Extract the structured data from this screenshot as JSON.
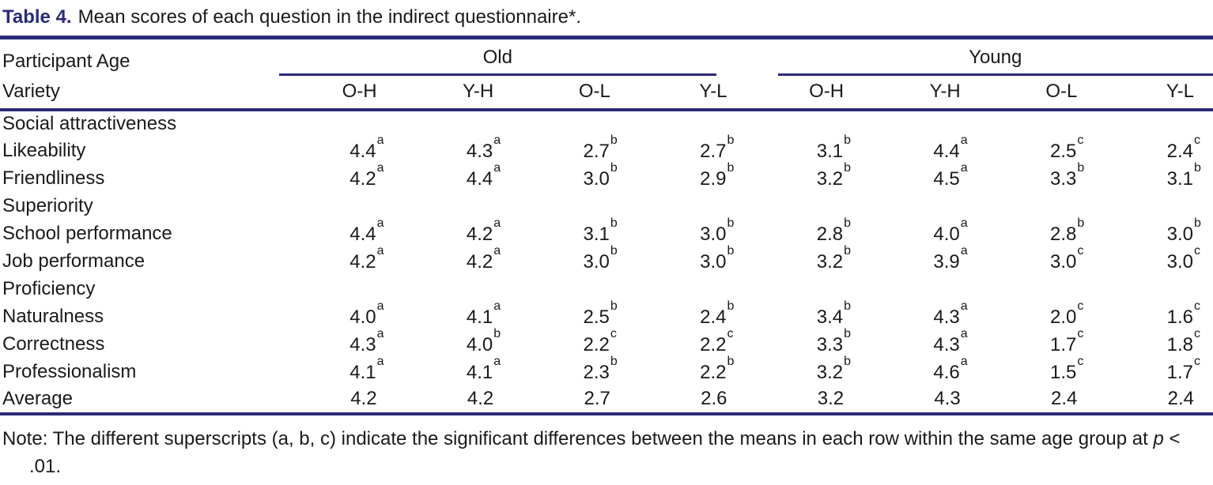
{
  "colors": {
    "accent_navy": "#2b2a78",
    "text": "#1a1a1a",
    "background": "#ffffff"
  },
  "title": {
    "label": "Table 4.",
    "text": "Mean scores of each question in the indirect questionnaire*."
  },
  "table": {
    "stub_header": {
      "line1": "Participant Age",
      "line2": "Variety"
    },
    "groups": [
      {
        "label": "Old",
        "columns": [
          "O-H",
          "Y-H",
          "O-L",
          "Y-L"
        ]
      },
      {
        "label": "Young",
        "columns": [
          "O-H",
          "Y-H",
          "O-L",
          "Y-L"
        ]
      }
    ],
    "rows": [
      {
        "type": "section",
        "label": "Social attractiveness"
      },
      {
        "type": "data",
        "label": "Likeability",
        "values": [
          {
            "v": "4.4",
            "s": "a"
          },
          {
            "v": "4.3",
            "s": "a"
          },
          {
            "v": "2.7",
            "s": "b"
          },
          {
            "v": "2.7",
            "s": "b"
          },
          {
            "v": "3.1",
            "s": "b"
          },
          {
            "v": "4.4",
            "s": "a"
          },
          {
            "v": "2.5",
            "s": "c"
          },
          {
            "v": "2.4",
            "s": "c"
          }
        ]
      },
      {
        "type": "data",
        "label": "Friendliness",
        "values": [
          {
            "v": "4.2",
            "s": "a"
          },
          {
            "v": "4.4",
            "s": "a"
          },
          {
            "v": "3.0",
            "s": "b"
          },
          {
            "v": "2.9",
            "s": "b"
          },
          {
            "v": "3.2",
            "s": "b"
          },
          {
            "v": "4.5",
            "s": "a"
          },
          {
            "v": "3.3",
            "s": "b"
          },
          {
            "v": "3.1",
            "s": "b"
          }
        ]
      },
      {
        "type": "section",
        "label": "Superiority"
      },
      {
        "type": "data",
        "label": "School performance",
        "values": [
          {
            "v": "4.4",
            "s": "a"
          },
          {
            "v": "4.2",
            "s": "a"
          },
          {
            "v": "3.1",
            "s": "b"
          },
          {
            "v": "3.0",
            "s": "b"
          },
          {
            "v": "2.8",
            "s": "b"
          },
          {
            "v": "4.0",
            "s": "a"
          },
          {
            "v": "2.8",
            "s": "b"
          },
          {
            "v": "3.0",
            "s": "b"
          }
        ]
      },
      {
        "type": "data",
        "label": "Job performance",
        "values": [
          {
            "v": "4.2",
            "s": "a"
          },
          {
            "v": "4.2",
            "s": "a"
          },
          {
            "v": "3.0",
            "s": "b"
          },
          {
            "v": "3.0",
            "s": "b"
          },
          {
            "v": "3.2",
            "s": "b"
          },
          {
            "v": "3.9",
            "s": "a"
          },
          {
            "v": "3.0",
            "s": "c"
          },
          {
            "v": "3.0",
            "s": "c"
          }
        ]
      },
      {
        "type": "section",
        "label": "Proficiency"
      },
      {
        "type": "data",
        "label": "Naturalness",
        "values": [
          {
            "v": "4.0",
            "s": "a"
          },
          {
            "v": "4.1",
            "s": "a"
          },
          {
            "v": "2.5",
            "s": "b"
          },
          {
            "v": "2.4",
            "s": "b"
          },
          {
            "v": "3.4",
            "s": "b"
          },
          {
            "v": "4.3",
            "s": "a"
          },
          {
            "v": "2.0",
            "s": "c"
          },
          {
            "v": "1.6",
            "s": "c"
          }
        ]
      },
      {
        "type": "data",
        "label": "Correctness",
        "values": [
          {
            "v": "4.3",
            "s": "a"
          },
          {
            "v": "4.0",
            "s": "b"
          },
          {
            "v": "2.2",
            "s": "c"
          },
          {
            "v": "2.2",
            "s": "c"
          },
          {
            "v": "3.3",
            "s": "b"
          },
          {
            "v": "4.3",
            "s": "a"
          },
          {
            "v": "1.7",
            "s": "c"
          },
          {
            "v": "1.8",
            "s": "c"
          }
        ]
      },
      {
        "type": "data",
        "label": "Professionalism",
        "values": [
          {
            "v": "4.1",
            "s": "a"
          },
          {
            "v": "4.1",
            "s": "a"
          },
          {
            "v": "2.3",
            "s": "b"
          },
          {
            "v": "2.2",
            "s": "b"
          },
          {
            "v": "3.2",
            "s": "b"
          },
          {
            "v": "4.6",
            "s": "a"
          },
          {
            "v": "1.5",
            "s": "c"
          },
          {
            "v": "1.7",
            "s": "c"
          }
        ]
      },
      {
        "type": "data",
        "label": "Average",
        "values": [
          {
            "v": "4.2"
          },
          {
            "v": "4.2"
          },
          {
            "v": "2.7"
          },
          {
            "v": "2.6"
          },
          {
            "v": "3.2"
          },
          {
            "v": "4.3"
          },
          {
            "v": "2.4"
          },
          {
            "v": "2.4"
          }
        ]
      }
    ]
  },
  "note": {
    "part1": "Note: The different superscripts (a, b, c) indicate the significant differences between the means in each row within the same age group at ",
    "p_var": "p",
    "part2": " < .01."
  }
}
